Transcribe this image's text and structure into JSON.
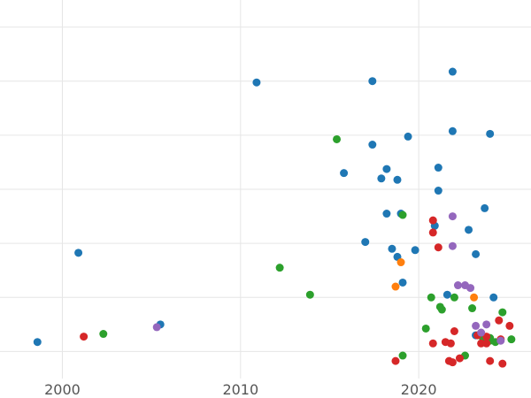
{
  "chart_data": {
    "type": "scatter",
    "title": "",
    "xlabel": "",
    "ylabel": "",
    "xlim": [
      1996.5,
      2026.3
    ],
    "ylim": [
      0,
      14
    ],
    "grid": true,
    "x_ticks": [
      2000,
      2010,
      2020
    ],
    "x_tick_labels": [
      "2000",
      "2010",
      "2020"
    ],
    "y_grid_values": [
      1,
      3,
      5,
      7,
      9,
      11,
      13
    ],
    "series": [
      {
        "color": "#1f77b4",
        "points": [
          [
            1998.6,
            1.35
          ],
          [
            2000.9,
            4.65
          ],
          [
            2005.5,
            2.0
          ],
          [
            2010.9,
            10.95
          ],
          [
            2015.8,
            7.6
          ],
          [
            2017.4,
            8.65
          ],
          [
            2017.4,
            11.0
          ],
          [
            2017.0,
            5.05
          ],
          [
            2017.9,
            7.4
          ],
          [
            2018.2,
            7.75
          ],
          [
            2018.8,
            7.35
          ],
          [
            2018.2,
            6.1
          ],
          [
            2019.0,
            6.1
          ],
          [
            2019.4,
            8.95
          ],
          [
            2018.5,
            4.8
          ],
          [
            2018.8,
            4.5
          ],
          [
            2019.1,
            3.55
          ],
          [
            2019.8,
            4.75
          ],
          [
            2020.9,
            5.65
          ],
          [
            2021.1,
            7.8
          ],
          [
            2021.1,
            6.95
          ],
          [
            2021.6,
            3.1
          ],
          [
            2021.9,
            9.15
          ],
          [
            2021.9,
            11.35
          ],
          [
            2022.8,
            5.5
          ],
          [
            2023.2,
            4.6
          ],
          [
            2023.7,
            6.3
          ],
          [
            2024.0,
            9.05
          ],
          [
            2024.2,
            3.0
          ],
          [
            2023.2,
            1.6
          ]
        ]
      },
      {
        "color": "#2ca02c",
        "points": [
          [
            2002.3,
            1.65
          ],
          [
            2012.2,
            4.1
          ],
          [
            2013.9,
            3.1
          ],
          [
            2015.4,
            8.85
          ],
          [
            2019.1,
            6.05
          ],
          [
            2019.1,
            0.85
          ],
          [
            2020.4,
            1.85
          ],
          [
            2020.7,
            3.0
          ],
          [
            2021.2,
            2.65
          ],
          [
            2021.3,
            2.55
          ],
          [
            2022.0,
            3.0
          ],
          [
            2022.6,
            0.85
          ],
          [
            2023.0,
            2.6
          ],
          [
            2023.6,
            1.5
          ],
          [
            2024.0,
            1.5
          ],
          [
            2024.0,
            1.4
          ],
          [
            2024.3,
            1.35
          ],
          [
            2024.7,
            2.45
          ],
          [
            2025.2,
            1.45
          ]
        ]
      },
      {
        "color": "#d62728",
        "points": [
          [
            2001.2,
            1.55
          ],
          [
            2018.7,
            0.65
          ],
          [
            2020.8,
            5.85
          ],
          [
            2020.8,
            5.4
          ],
          [
            2021.1,
            4.85
          ],
          [
            2020.8,
            1.3
          ],
          [
            2021.5,
            1.35
          ],
          [
            2021.7,
            0.65
          ],
          [
            2021.8,
            1.3
          ],
          [
            2021.9,
            0.6
          ],
          [
            2022.0,
            1.75
          ],
          [
            2022.3,
            0.75
          ],
          [
            2023.3,
            1.6
          ],
          [
            2023.5,
            1.3
          ],
          [
            2023.8,
            1.55
          ],
          [
            2023.8,
            1.3
          ],
          [
            2024.0,
            0.65
          ],
          [
            2024.5,
            2.15
          ],
          [
            2024.6,
            1.45
          ],
          [
            2024.7,
            0.55
          ],
          [
            2025.1,
            1.95
          ]
        ]
      },
      {
        "color": "#9467bd",
        "points": [
          [
            2005.3,
            1.9
          ],
          [
            2021.9,
            6.0
          ],
          [
            2021.9,
            4.9
          ],
          [
            2022.2,
            3.45
          ],
          [
            2022.6,
            3.45
          ],
          [
            2022.9,
            3.35
          ],
          [
            2023.2,
            1.95
          ],
          [
            2023.5,
            1.7
          ],
          [
            2023.8,
            2.0
          ],
          [
            2024.6,
            1.4
          ]
        ]
      },
      {
        "color": "#ff7f0e",
        "points": [
          [
            2018.7,
            3.4
          ],
          [
            2019.0,
            4.3
          ],
          [
            2023.1,
            3.0
          ]
        ]
      }
    ]
  }
}
